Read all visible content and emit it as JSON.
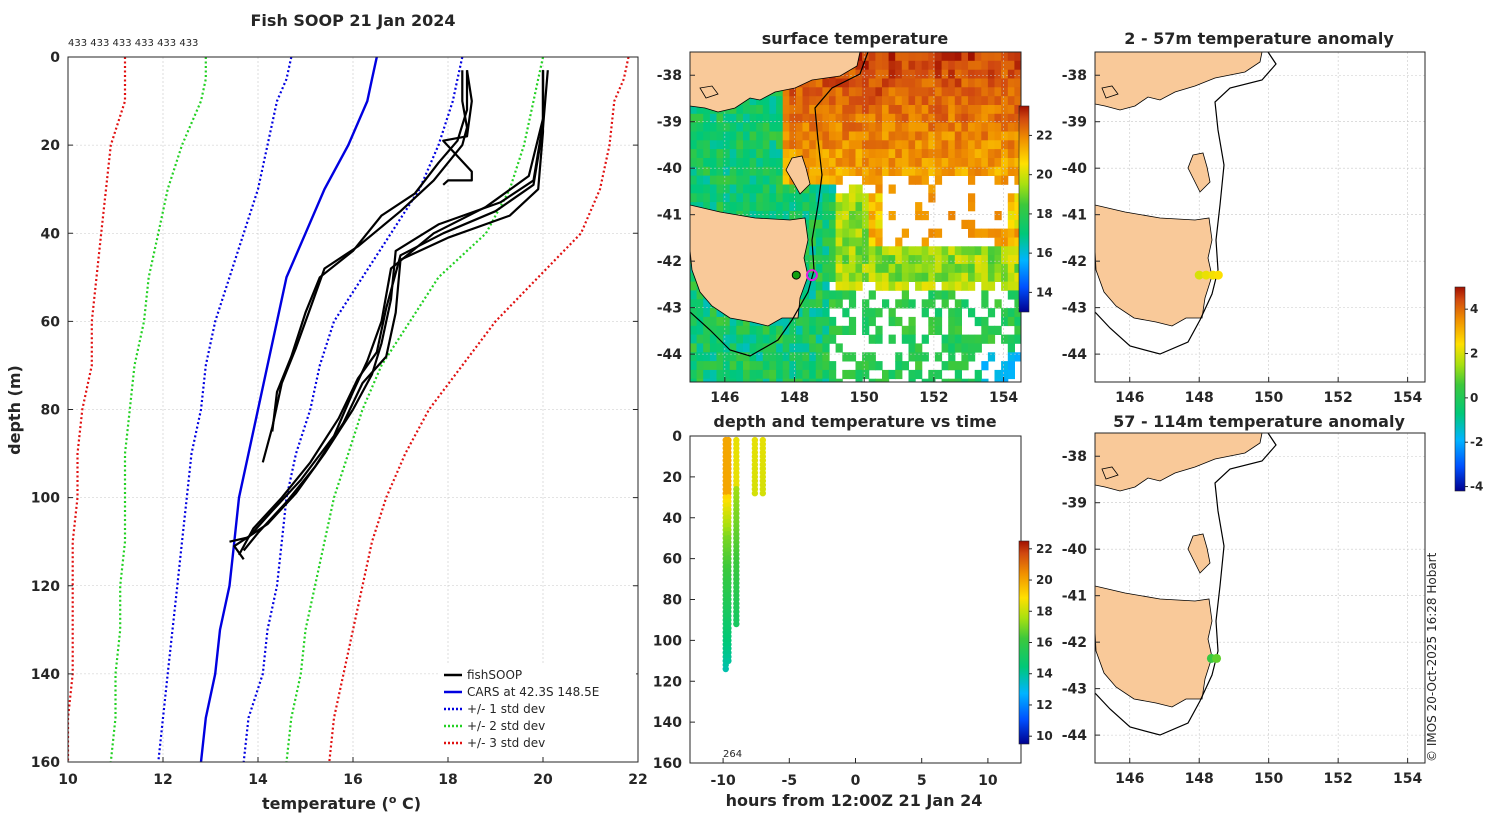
{
  "chart_data": [
    {
      "type": "line",
      "title": "Fish SOOP 21 Jan 2024",
      "xlabel": "temperature (",
      "xlabel_sup": "o",
      "xlabel_tail": " C)",
      "ylabel": "depth (m)",
      "xlim": [
        10,
        22
      ],
      "ylim": [
        0,
        160
      ],
      "xticks": [
        "10",
        "12",
        "14",
        "16",
        "18",
        "20",
        "22"
      ],
      "yticks": [
        "0",
        "20",
        "40",
        "60",
        "80",
        "100",
        "120",
        "140",
        "160"
      ],
      "top_annotation": "433 433 433 433 433 433",
      "legend": [
        "fishSOOP",
        "CARS at 42.3S 148.5E",
        "+/- 1 std dev",
        "+/- 2 std dev",
        "+/- 3 std dev"
      ],
      "legend_colors": [
        "#000000",
        "#0000e0",
        "#0000e0",
        "#22d022",
        "#e01010"
      ],
      "depths": [
        0,
        5,
        10,
        20,
        30,
        40,
        50,
        60,
        70,
        80,
        90,
        100,
        110,
        120,
        130,
        140,
        150,
        160
      ],
      "cars_mean": [
        16.5,
        16.4,
        16.3,
        15.9,
        15.4,
        15.0,
        14.6,
        14.4,
        14.2,
        14.0,
        13.8,
        13.6,
        13.5,
        13.4,
        13.2,
        13.1,
        12.9,
        12.8
      ],
      "std1_low": [
        14.7,
        14.6,
        14.4,
        14.2,
        14.0,
        13.7,
        13.4,
        13.1,
        12.9,
        12.8,
        12.6,
        12.5,
        12.4,
        12.3,
        12.2,
        12.1,
        12.0,
        11.9
      ],
      "std1_high": [
        18.3,
        18.2,
        18.1,
        17.8,
        17.4,
        16.8,
        16.2,
        15.6,
        15.3,
        15.1,
        14.8,
        14.6,
        14.5,
        14.4,
        14.2,
        14.1,
        13.8,
        13.7
      ],
      "std2_low": [
        12.9,
        12.9,
        12.8,
        12.4,
        12.1,
        11.9,
        11.7,
        11.6,
        11.4,
        11.3,
        11.2,
        11.2,
        11.2,
        11.1,
        11.1,
        11.0,
        11.0,
        10.9
      ],
      "std2_high": [
        20.0,
        19.9,
        19.8,
        19.6,
        19.3,
        18.8,
        17.8,
        17.2,
        16.6,
        16.2,
        15.9,
        15.6,
        15.4,
        15.2,
        15.0,
        14.9,
        14.7,
        14.6
      ],
      "std3_low": [
        11.2,
        11.2,
        11.2,
        10.9,
        10.8,
        10.7,
        10.6,
        10.5,
        10.5,
        10.3,
        10.2,
        10.2,
        10.1,
        10.1,
        10.1,
        10.1,
        10.0,
        10.0
      ],
      "std3_high": [
        21.8,
        21.7,
        21.5,
        21.4,
        21.2,
        20.8,
        19.9,
        19.0,
        18.3,
        17.6,
        17.1,
        16.7,
        16.4,
        16.2,
        16.0,
        15.8,
        15.6,
        15.5
      ],
      "fish_profiles": [
        {
          "t": [
            18.3,
            18.3,
            18.4,
            18.3,
            17.7,
            17.0,
            16.1,
            15.4,
            15.1,
            14.8,
            14.5,
            14.3,
            14.1
          ],
          "d": [
            3,
            10,
            16,
            20,
            28,
            35,
            43,
            48,
            57,
            66,
            74,
            84,
            92
          ]
        },
        {
          "t": [
            18.4,
            18.4,
            18.2,
            17.8,
            17.3,
            16.6,
            16.0,
            15.3,
            15.0,
            14.7,
            14.4,
            14.3
          ],
          "d": [
            3,
            12,
            19,
            24,
            31,
            36,
            44,
            50,
            58,
            68,
            76,
            85
          ]
        },
        {
          "t": [
            18.4,
            18.5,
            18.4,
            17.9,
            18.5,
            18.5,
            18.0,
            17.9
          ],
          "d": [
            3,
            10,
            18,
            19,
            26,
            28,
            28,
            29
          ]
        },
        {
          "t": [
            20.0,
            20.0,
            19.8,
            19.1,
            17.8,
            16.9,
            16.8,
            16.6,
            16.4,
            16.0,
            15.4,
            14.8,
            14.2,
            13.5,
            13.7
          ],
          "d": [
            3,
            15,
            28,
            33,
            38,
            44,
            55,
            65,
            72,
            80,
            90,
            99,
            106,
            111,
            114
          ]
        },
        {
          "t": [
            20.0,
            20.0,
            19.9,
            19.3,
            18.0,
            17.0,
            16.9,
            16.7,
            16.2,
            15.8,
            15.2,
            14.6,
            14.0,
            13.7
          ],
          "d": [
            3,
            17,
            30,
            36,
            41,
            46,
            58,
            68,
            74,
            83,
            93,
            101,
            108,
            112
          ]
        },
        {
          "t": [
            20.0,
            20.0,
            19.7,
            18.8,
            17.7,
            16.8,
            16.6,
            16.3,
            16.0,
            15.6,
            14.9,
            14.3,
            13.8,
            13.4
          ],
          "d": [
            3,
            14,
            27,
            34,
            40,
            48,
            60,
            69,
            76,
            86,
            96,
            103,
            109,
            110
          ]
        },
        {
          "t": [
            20.1,
            20.0,
            19.8,
            19.0,
            17.9,
            17.0,
            16.7,
            16.5,
            16.1,
            15.7,
            15.1,
            14.5,
            13.9,
            13.6
          ],
          "d": [
            3,
            16,
            29,
            35,
            40,
            45,
            57,
            67,
            73,
            82,
            92,
            100,
            107,
            113
          ]
        }
      ]
    },
    {
      "type": "heatmap",
      "title": "surface temperature",
      "xticks": [
        "146",
        "148",
        "150",
        "152",
        "154"
      ],
      "yticks": [
        "-38",
        "-39",
        "-40",
        "-41",
        "-42",
        "-43",
        "-44"
      ],
      "xlim": [
        145,
        154.5
      ],
      "ylim": [
        -44.6,
        -37.5
      ],
      "colorbar_ticks": [
        "14",
        "16",
        "18",
        "20",
        "22"
      ],
      "colorbar_range": [
        13,
        23.5
      ],
      "marker": [
        148.5,
        -42.3
      ]
    },
    {
      "type": "scatter",
      "title": "depth and temperature vs time",
      "xlabel": "hours from 12:00Z 21 Jan 24",
      "xticks": [
        "-10",
        "-5",
        "0",
        "5",
        "10"
      ],
      "yticks": [
        "0",
        "20",
        "40",
        "60",
        "80",
        "100",
        "120",
        "140",
        "160"
      ],
      "xlim": [
        -12.5,
        12.5
      ],
      "ylim": [
        0,
        160
      ],
      "annotation": "264",
      "colorbar_ticks": [
        "10",
        "12",
        "14",
        "16",
        "18",
        "20",
        "22"
      ],
      "colorbar_range": [
        9.5,
        22.5
      ],
      "casts": [
        {
          "time": -9.8,
          "max_depth": 114
        },
        {
          "time": -9.6,
          "max_depth": 110
        },
        {
          "time": -9.0,
          "max_depth": 92
        },
        {
          "time": -7.6,
          "max_depth": 28
        },
        {
          "time": -7.0,
          "max_depth": 29
        }
      ]
    },
    {
      "type": "scatter",
      "title": "2 - 57m temperature anomaly",
      "xticks": [
        "146",
        "148",
        "150",
        "152",
        "154"
      ],
      "yticks": [
        "-38",
        "-39",
        "-40",
        "-41",
        "-42",
        "-43",
        "-44"
      ],
      "xlim": [
        145,
        154.5
      ],
      "ylim": [
        -44.6,
        -37.5
      ],
      "points": [
        {
          "lon": 148.0,
          "lat": -42.3,
          "anomaly": 2.0
        },
        {
          "lon": 148.2,
          "lat": -42.3,
          "anomaly": 2.2
        },
        {
          "lon": 148.4,
          "lat": -42.3,
          "anomaly": 2.3
        },
        {
          "lon": 148.55,
          "lat": -42.3,
          "anomaly": 2.4
        }
      ]
    },
    {
      "type": "scatter",
      "title": "57 - 114m temperature anomaly",
      "xticks": [
        "146",
        "148",
        "150",
        "152",
        "154"
      ],
      "yticks": [
        "-38",
        "-39",
        "-40",
        "-41",
        "-42",
        "-43",
        "-44"
      ],
      "xlim": [
        145,
        154.5
      ],
      "ylim": [
        -44.6,
        -37.5
      ],
      "points": [
        {
          "lon": 148.35,
          "lat": -42.35,
          "anomaly": 0.5
        },
        {
          "lon": 148.5,
          "lat": -42.35,
          "anomaly": 0.9
        }
      ],
      "colorbar_ticks": [
        "-4",
        "-2",
        "0",
        "2",
        "4"
      ],
      "colorbar_range": [
        -4.2,
        5
      ]
    }
  ],
  "credit": "© IMOS 20-Oct-2025 16:28 Hobart"
}
